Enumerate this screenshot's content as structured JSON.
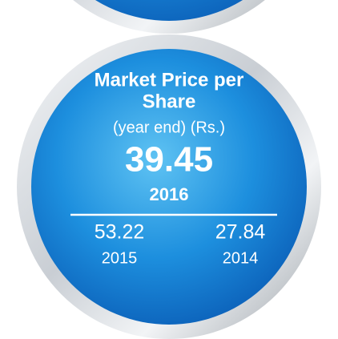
{
  "title_lines": [
    "Market Price per",
    "Share"
  ],
  "subtitle": "(year end) (Rs.)",
  "current": {
    "value": "39.45",
    "year": "2016"
  },
  "previous": [
    {
      "value": "53.22",
      "year": "2015"
    },
    {
      "value": "27.84",
      "year": "2014"
    }
  ]
}
